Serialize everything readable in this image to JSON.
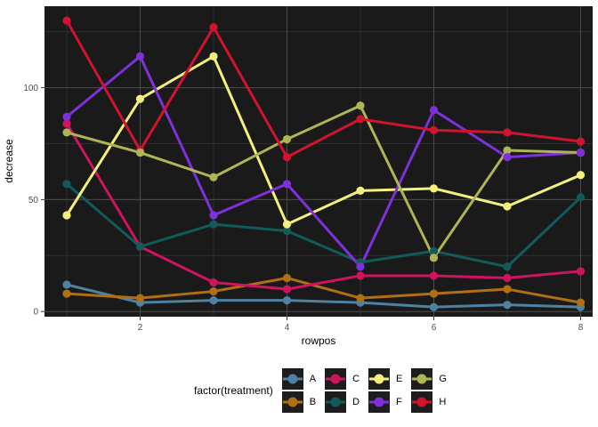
{
  "figure": {
    "panel_bg": "#1a1a1a",
    "grid_major": "#4c4c4c",
    "grid_minor": "#2e2e2e",
    "axis_text_color": "#4d4d4d",
    "tick_color": "#333333",
    "legend_key_bg": "#1d1d1d"
  },
  "chart_data": {
    "type": "line",
    "title": "",
    "xlabel": "rowpos",
    "ylabel": "decrease",
    "x": [
      1,
      2,
      3,
      4,
      5,
      6,
      7,
      8
    ],
    "x_major_ticks": [
      2,
      4,
      6,
      8
    ],
    "x_minor_gridlines": [
      1,
      3,
      5,
      7
    ],
    "y_major_ticks": [
      0,
      50,
      100
    ],
    "y_minor_gridlines": [
      25,
      75,
      125
    ],
    "xlim": [
      0.697,
      8.164
    ],
    "ylim": [
      -2.3,
      136.4
    ],
    "grid": true,
    "legend_title": "factor(treatment)",
    "legend_position": "bottom",
    "series": [
      {
        "name": "A",
        "color": "#4F81A2",
        "values": [
          12,
          4,
          5,
          5,
          4,
          2,
          3,
          2
        ]
      },
      {
        "name": "B",
        "color": "#B06F10",
        "values": [
          8,
          6,
          9,
          15,
          6,
          8,
          10,
          4
        ]
      },
      {
        "name": "C",
        "color": "#CE145E",
        "values": [
          84,
          29,
          13,
          10,
          16,
          16,
          15,
          18
        ]
      },
      {
        "name": "D",
        "color": "#115B5B",
        "values": [
          57,
          29,
          39,
          36,
          22,
          27,
          20,
          51
        ]
      },
      {
        "name": "E",
        "color": "#F5F07E",
        "values": [
          43,
          95,
          114,
          39,
          54,
          55,
          47,
          61
        ]
      },
      {
        "name": "F",
        "color": "#7E30DB",
        "values": [
          87,
          114,
          43,
          57,
          20,
          90,
          69,
          71
        ]
      },
      {
        "name": "G",
        "color": "#AFB554",
        "values": [
          80,
          71,
          60,
          77,
          92,
          24,
          72,
          71
        ]
      },
      {
        "name": "H",
        "color": "#D0132F",
        "values": [
          130,
          72,
          127,
          69,
          86,
          81,
          80,
          76
        ]
      }
    ],
    "point_draw_order": [
      "A",
      "B",
      "C",
      "D",
      "E",
      "H",
      "G",
      "F"
    ]
  }
}
